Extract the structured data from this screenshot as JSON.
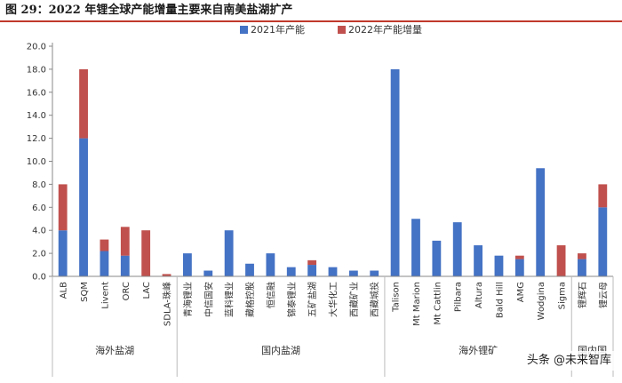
{
  "title": "图 29：2022 年锂全球产能增量主要来自南美盐湖扩产",
  "watermark": "头条 @未来智库",
  "colors": {
    "base": "#4472c4",
    "increment": "#c0504d",
    "title_rule": "#c0392b"
  },
  "chart_data": {
    "type": "bar",
    "stacked": true,
    "ylim": [
      0,
      20
    ],
    "yticks": [
      "0.0",
      "2.0",
      "4.0",
      "6.0",
      "8.0",
      "10.0",
      "12.0",
      "14.0",
      "16.0",
      "18.0",
      "20.0"
    ],
    "grid": false,
    "legend_position": "top",
    "categories": [
      "ALB",
      "SQM",
      "Livent",
      "ORC",
      "LAC",
      "SDLA-珠峰",
      "青海锂业",
      "中信国安",
      "蓝科锂业",
      "藏格控股",
      "恒信融",
      "锦泰锂业",
      "五矿盐湖",
      "大华化工",
      "西藏矿业",
      "西藏城投",
      "Talison",
      "Mt Marion",
      "Mt Cattlin",
      "Pilbara",
      "Altura",
      "Bald Hill",
      "AMG",
      "Wodgina",
      "Sigma",
      "锂辉石",
      "锂云母"
    ],
    "series": [
      {
        "name": "2021年产能",
        "values": [
          4.0,
          12.0,
          2.2,
          1.8,
          0,
          0,
          2.0,
          0.5,
          4.0,
          1.1,
          2.0,
          0.8,
          1.0,
          0.8,
          0.5,
          0.5,
          18.0,
          5.0,
          3.1,
          4.7,
          2.7,
          1.8,
          1.5,
          9.4,
          0,
          1.5,
          6.0
        ]
      },
      {
        "name": "2022年产能增量",
        "values": [
          4.0,
          6.0,
          1.0,
          2.5,
          4.0,
          0.2,
          0,
          0,
          0,
          0,
          0,
          0,
          0.4,
          0,
          0,
          0,
          0,
          0,
          0,
          0,
          0,
          0,
          0.3,
          0,
          2.7,
          0.5,
          2.0
        ]
      }
    ],
    "groups": [
      {
        "label": "海外盐湖",
        "start": 0,
        "end": 5
      },
      {
        "label": "国内盐湖",
        "start": 6,
        "end": 15
      },
      {
        "label": "海外锂矿",
        "start": 16,
        "end": 24
      },
      {
        "label": "国内国",
        "start": 25,
        "end": 26
      }
    ]
  }
}
